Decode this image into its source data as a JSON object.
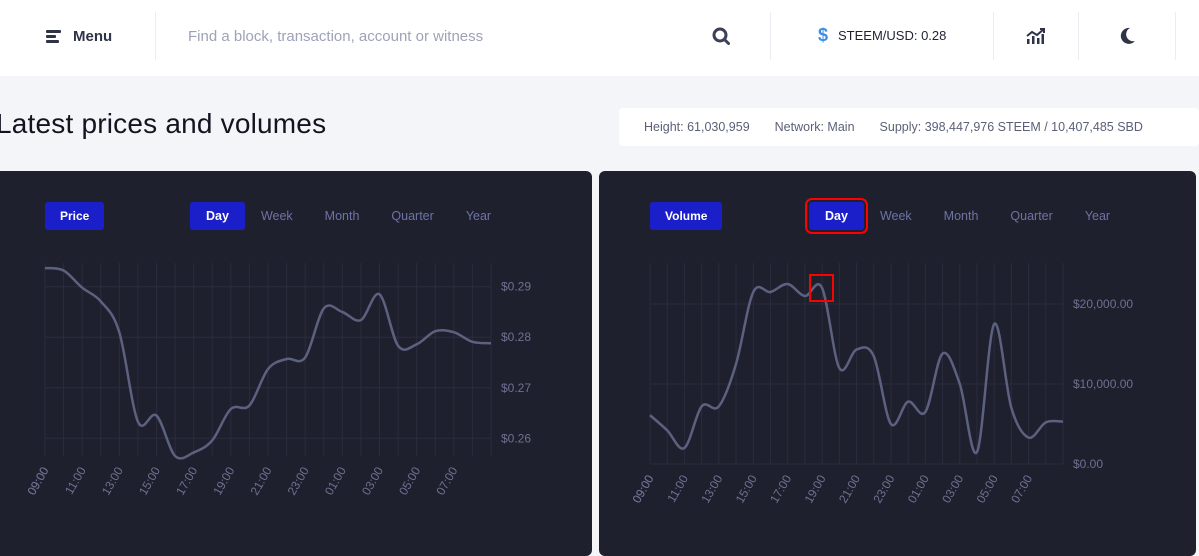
{
  "header": {
    "menu_label": "Menu",
    "search_placeholder": "Find a block, transaction, account or witness",
    "ticker": "STEEM/USD: 0.28",
    "icons": [
      "menu-icon",
      "search-icon",
      "dollar-icon",
      "chart-icon",
      "moon-icon"
    ]
  },
  "title": "Latest prices and volumes",
  "network": {
    "height": "Height: 61,030,959",
    "network": "Network: Main",
    "supply": "Supply: 398,447,976 STEEM / 10,407,485 SBD"
  },
  "ranges": [
    "Day",
    "Week",
    "Month",
    "Quarter",
    "Year"
  ],
  "colors": {
    "accent": "#1a1fc9",
    "panel": "#1f202e",
    "line": "#5d6180",
    "highlight": "#ff0000"
  },
  "chart_data": [
    {
      "type": "line",
      "label": "Price",
      "active_range": "Day",
      "x": [
        "09:00",
        "10:00",
        "11:00",
        "12:00",
        "13:00",
        "14:00",
        "15:00",
        "16:00",
        "17:00",
        "18:00",
        "19:00",
        "20:00",
        "21:00",
        "22:00",
        "23:00",
        "00:00",
        "01:00",
        "02:00",
        "03:00",
        "04:00",
        "05:00",
        "06:00",
        "07:00",
        "08:00",
        "09:00"
      ],
      "xticks": [
        "09:00",
        "11:00",
        "13:00",
        "15:00",
        "17:00",
        "19:00",
        "21:00",
        "23:00",
        "01:00",
        "03:00",
        "05:00",
        "07:00",
        "09:00"
      ],
      "values": [
        0.2937,
        0.2932,
        0.2898,
        0.2871,
        0.281,
        0.2633,
        0.2645,
        0.2565,
        0.2572,
        0.2596,
        0.2658,
        0.2665,
        0.2737,
        0.2757,
        0.276,
        0.2857,
        0.285,
        0.2834,
        0.2885,
        0.2783,
        0.2786,
        0.2812,
        0.281,
        0.2791,
        0.2788
      ],
      "yticks": [
        "$0.26",
        "$0.27",
        "$0.28",
        "$0.29"
      ],
      "ylim": [
        0.2565,
        0.2937
      ],
      "grid": true
    },
    {
      "type": "line",
      "label": "Volume",
      "active_range": "Day",
      "x": [
        "09:00",
        "10:00",
        "11:00",
        "12:00",
        "13:00",
        "14:00",
        "15:00",
        "16:00",
        "17:00",
        "18:00",
        "19:00",
        "20:00",
        "21:00",
        "22:00",
        "23:00",
        "00:00",
        "01:00",
        "02:00",
        "03:00",
        "04:00",
        "05:00",
        "06:00",
        "07:00",
        "08:00",
        "09:00"
      ],
      "xticks": [
        "09:00",
        "11:00",
        "13:00",
        "15:00",
        "17:00",
        "19:00",
        "21:00",
        "23:00",
        "01:00",
        "03:00",
        "05:00",
        "07:00",
        "09:00"
      ],
      "values": [
        6100,
        4200,
        2000,
        7200,
        7200,
        12500,
        21500,
        21500,
        22500,
        21000,
        22000,
        12000,
        14300,
        13500,
        5000,
        7800,
        6500,
        13800,
        10000,
        1500,
        17500,
        7000,
        3300,
        5200,
        5300
      ],
      "yticks": [
        "$0.00",
        "$10,000.00",
        "$20,000.00"
      ],
      "ylim": [
        0,
        25000
      ],
      "grid": true,
      "marked_point": "19:00"
    }
  ]
}
